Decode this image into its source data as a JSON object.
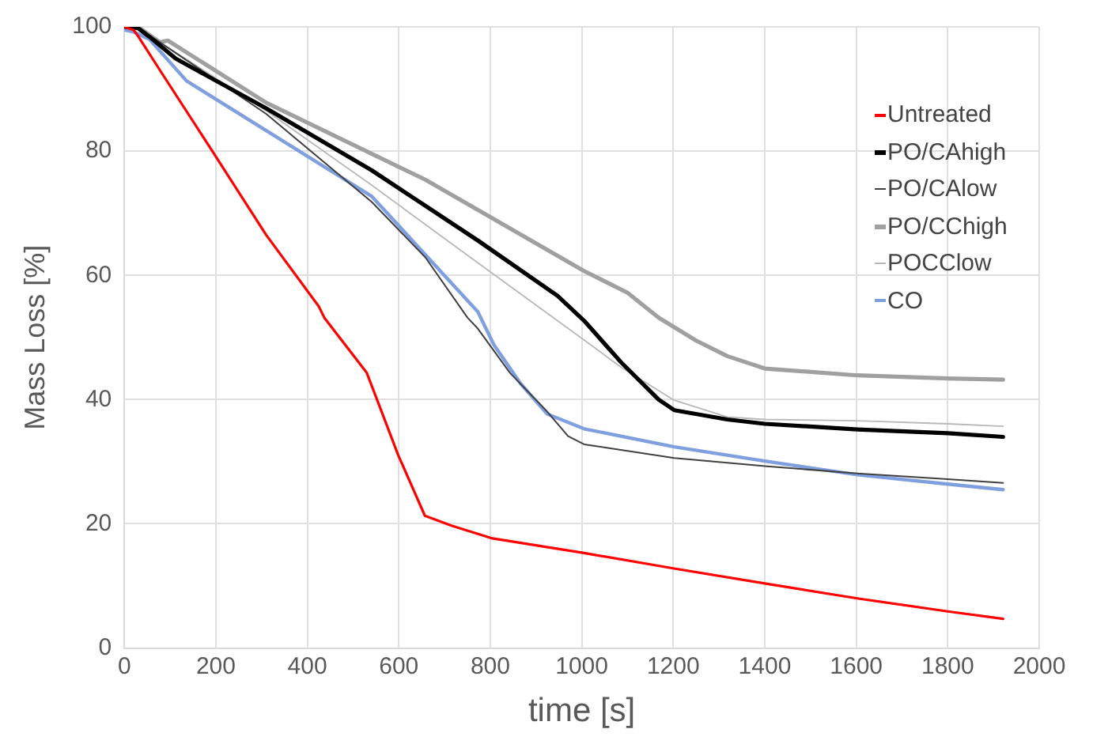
{
  "chart_data": {
    "type": "line",
    "xlabel": "time [s]",
    "ylabel": "Mass Loss [%]",
    "xlim": [
      0,
      2000
    ],
    "xticks": [
      0,
      200,
      400,
      600,
      800,
      1000,
      1200,
      1400,
      1600,
      1800,
      2000
    ],
    "ylim": [
      0,
      100
    ],
    "yticks": [
      0,
      20,
      40,
      60,
      80,
      100
    ],
    "grid": true,
    "legend": "right",
    "marker": "none",
    "line_style": "solid",
    "series": [
      {
        "name": "Untreated",
        "color": "#ff0000",
        "x": [
          0,
          20,
          31,
          78,
          194,
          310,
          425,
          437,
          530,
          599,
          657,
          715,
          802,
          1005,
          1202,
          1400,
          1602,
          1800,
          1921
        ],
        "values": [
          100,
          99.5,
          98.4,
          93,
          79.8,
          66.5,
          55,
          53.2,
          44.3,
          31,
          21.3,
          19.7,
          17.7,
          15.3,
          12.8,
          10.4,
          8,
          5.9,
          4.7
        ]
      },
      {
        "name": "PO/CAhigh",
        "color": "#000000",
        "x": [
          0,
          30,
          55,
          112,
          310,
          541,
          773,
          947,
          1005,
          1086,
          1168,
          1202,
          1318,
          1400,
          1602,
          1800,
          1921
        ],
        "values": [
          100,
          99.8,
          98.4,
          94.9,
          86.9,
          76.9,
          65.6,
          56.7,
          52.7,
          46,
          40,
          38.3,
          36.8,
          36.1,
          35.2,
          34.6,
          34
        ]
      },
      {
        "name": "PO/CAlow",
        "color": "#404040",
        "x": [
          0,
          30,
          78,
          310,
          541,
          658,
          750,
          773,
          843,
          924,
          970,
          1005,
          1202,
          1400,
          1602,
          1800,
          1921
        ],
        "values": [
          100,
          99.8,
          97.5,
          86,
          71.8,
          62.9,
          53.2,
          51.4,
          44.3,
          38.1,
          34.1,
          32.8,
          30.6,
          29.3,
          28.1,
          27.2,
          26.6
        ]
      },
      {
        "name": "PO/CChigh",
        "color": "#a0a0a0",
        "x": [
          0,
          30,
          78,
          95,
          310,
          658,
          1005,
          1100,
          1168,
          1250,
          1318,
          1400,
          1602,
          1800,
          1921
        ],
        "values": [
          100,
          100,
          97.5,
          97.8,
          87.8,
          75.4,
          60.7,
          57.2,
          53.2,
          49.5,
          47,
          45,
          43.9,
          43.4,
          43.2
        ]
      },
      {
        "name": "POCClow",
        "color": "#b8b8b8",
        "x": [
          0,
          30,
          78,
          310,
          541,
          773,
          1005,
          1086,
          1202,
          1318,
          1400,
          1602,
          1800,
          1921
        ],
        "values": [
          100,
          99.8,
          97.5,
          86.5,
          74.5,
          62,
          49.6,
          45.2,
          39.9,
          37.2,
          36.8,
          36.6,
          36.1,
          35.7
        ]
      },
      {
        "name": "CO",
        "color": "#7f9fdf",
        "x": [
          0,
          20,
          55,
          136,
          310,
          541,
          773,
          808,
          866,
          924,
          1005,
          1202,
          1400,
          1602,
          1800,
          1921
        ],
        "values": [
          99.5,
          99.2,
          98,
          91.3,
          83.3,
          72.7,
          54.1,
          48.8,
          42.6,
          37.7,
          35.3,
          32.4,
          30.1,
          27.9,
          26.4,
          25.5
        ]
      }
    ]
  }
}
